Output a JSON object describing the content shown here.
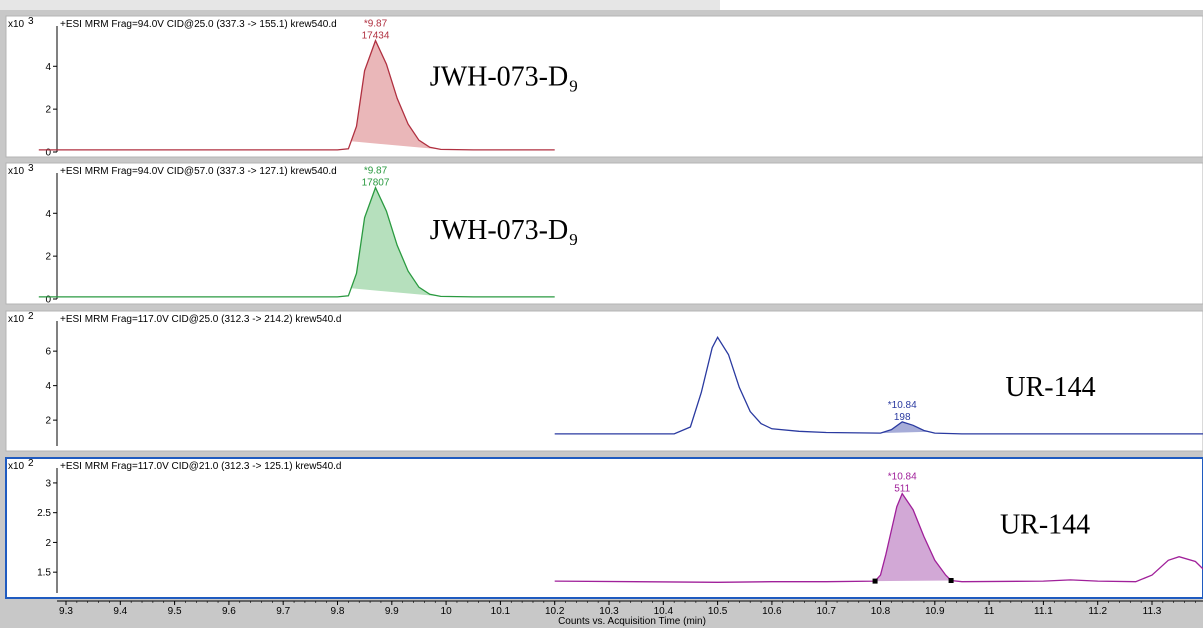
{
  "app": {
    "frame_color": "#c8c8c8",
    "panel_border": "#b4b4b4",
    "selected_border": "#1f5bc0"
  },
  "chart_data": {
    "type": "line",
    "xlabel": "Counts vs. Acquisition Time (min)",
    "xlim": [
      9.25,
      11.4
    ],
    "xticks": [
      "9.3",
      "9.4",
      "9.5",
      "9.6",
      "9.7",
      "9.8",
      "9.9",
      "10",
      "10.1",
      "10.2",
      "10.3",
      "10.4",
      "10.5",
      "10.6",
      "10.7",
      "10.8",
      "10.9",
      "11",
      "11.1",
      "11.2",
      "11.3"
    ],
    "panels": [
      {
        "id": "p1",
        "header": "+ESI MRM Frag=94.0V CID@25.0 (337.3 -> 155.1) krew540.d",
        "scale_base": "x10",
        "scale_exp": "3",
        "ylim": [
          0,
          5.6
        ],
        "yticks": [
          "0",
          "2",
          "4"
        ],
        "color": "#b03040",
        "fill": "#eab7b9",
        "label_main": "JWH-073-D",
        "label_sub": "9",
        "label_at": [
          9.97,
          3.1
        ],
        "peak": {
          "rt_label": "*9.87",
          "area_label": "17434",
          "rt": 9.87
        },
        "trace": [
          [
            9.25,
            0.1
          ],
          [
            9.8,
            0.1
          ],
          [
            9.82,
            0.15
          ],
          [
            9.835,
            1.2
          ],
          [
            9.85,
            3.8
          ],
          [
            9.87,
            5.2
          ],
          [
            9.89,
            4.1
          ],
          [
            9.91,
            2.5
          ],
          [
            9.93,
            1.3
          ],
          [
            9.95,
            0.55
          ],
          [
            9.97,
            0.22
          ],
          [
            9.99,
            0.12
          ],
          [
            10.05,
            0.1
          ],
          [
            10.2,
            0.1
          ]
        ],
        "fill_region": [
          9.825,
          9.99
        ]
      },
      {
        "id": "p2",
        "header": "+ESI MRM Frag=94.0V CID@57.0 (337.3 -> 127.1) krew540.d",
        "scale_base": "x10",
        "scale_exp": "3",
        "ylim": [
          0,
          5.6
        ],
        "yticks": [
          "0",
          "2",
          "4"
        ],
        "color": "#2a9a40",
        "fill": "#b6e0bd",
        "label_main": "JWH-073-D",
        "label_sub": "9",
        "label_at": [
          9.97,
          2.8
        ],
        "peak": {
          "rt_label": "*9.87",
          "area_label": "17807",
          "rt": 9.87
        },
        "trace": [
          [
            9.25,
            0.1
          ],
          [
            9.8,
            0.1
          ],
          [
            9.82,
            0.15
          ],
          [
            9.835,
            1.2
          ],
          [
            9.85,
            3.8
          ],
          [
            9.87,
            5.2
          ],
          [
            9.89,
            4.1
          ],
          [
            9.91,
            2.5
          ],
          [
            9.93,
            1.3
          ],
          [
            9.95,
            0.55
          ],
          [
            9.97,
            0.22
          ],
          [
            9.99,
            0.12
          ],
          [
            10.05,
            0.1
          ],
          [
            10.2,
            0.1
          ]
        ],
        "fill_region": [
          9.825,
          9.99
        ]
      },
      {
        "id": "p3",
        "header": "+ESI MRM Frag=117.0V CID@25.0 (312.3 -> 214.2) krew540.d",
        "scale_base": "x10",
        "scale_exp": "2",
        "ylim": [
          0.5,
          7.4
        ],
        "yticks": [
          "2",
          "4",
          "6"
        ],
        "color": "#2a3aa0",
        "fill": "#a6acd8",
        "label_main": "UR-144",
        "label_sub": "",
        "label_at": [
          11.03,
          3.4
        ],
        "peak": {
          "rt_label": "*10.84",
          "area_label": "198",
          "rt": 10.84
        },
        "trace": [
          [
            10.2,
            1.2
          ],
          [
            10.42,
            1.2
          ],
          [
            10.45,
            1.6
          ],
          [
            10.47,
            3.6
          ],
          [
            10.49,
            6.2
          ],
          [
            10.5,
            6.8
          ],
          [
            10.52,
            5.8
          ],
          [
            10.54,
            3.9
          ],
          [
            10.56,
            2.5
          ],
          [
            10.58,
            1.8
          ],
          [
            10.6,
            1.5
          ],
          [
            10.65,
            1.35
          ],
          [
            10.7,
            1.28
          ],
          [
            10.8,
            1.25
          ],
          [
            10.82,
            1.45
          ],
          [
            10.84,
            1.9
          ],
          [
            10.86,
            1.7
          ],
          [
            10.88,
            1.4
          ],
          [
            10.9,
            1.25
          ],
          [
            10.95,
            1.2
          ],
          [
            11.4,
            1.2
          ]
        ],
        "fill_region": [
          10.8,
          10.89
        ]
      },
      {
        "id": "p4",
        "header": "+ESI MRM Frag=117.0V CID@21.0 (312.3 -> 125.1) krew540.d",
        "scale_base": "x10",
        "scale_exp": "2",
        "ylim": [
          1.15,
          3.15
        ],
        "yticks": [
          "1.5",
          "2",
          "2.5",
          "3"
        ],
        "color": "#a0209a",
        "fill": "#d2a8d6",
        "label_main": "UR-144",
        "label_sub": "",
        "label_at": [
          11.02,
          2.15
        ],
        "peak": {
          "rt_label": "*10.84",
          "area_label": "511",
          "rt": 10.84
        },
        "trace": [
          [
            10.2,
            1.35
          ],
          [
            10.5,
            1.33
          ],
          [
            10.6,
            1.34
          ],
          [
            10.7,
            1.34
          ],
          [
            10.79,
            1.35
          ],
          [
            10.8,
            1.45
          ],
          [
            10.81,
            1.8
          ],
          [
            10.83,
            2.6
          ],
          [
            10.84,
            2.82
          ],
          [
            10.86,
            2.55
          ],
          [
            10.88,
            2.1
          ],
          [
            10.9,
            1.7
          ],
          [
            10.92,
            1.45
          ],
          [
            10.93,
            1.36
          ],
          [
            10.95,
            1.34
          ],
          [
            11.1,
            1.35
          ],
          [
            11.15,
            1.37
          ],
          [
            11.2,
            1.35
          ],
          [
            11.27,
            1.34
          ],
          [
            11.3,
            1.45
          ],
          [
            11.33,
            1.7
          ],
          [
            11.35,
            1.76
          ],
          [
            11.38,
            1.68
          ],
          [
            11.4,
            1.5
          ]
        ],
        "fill_region": [
          10.79,
          10.93
        ],
        "markers": [
          10.79,
          10.93
        ]
      }
    ]
  }
}
